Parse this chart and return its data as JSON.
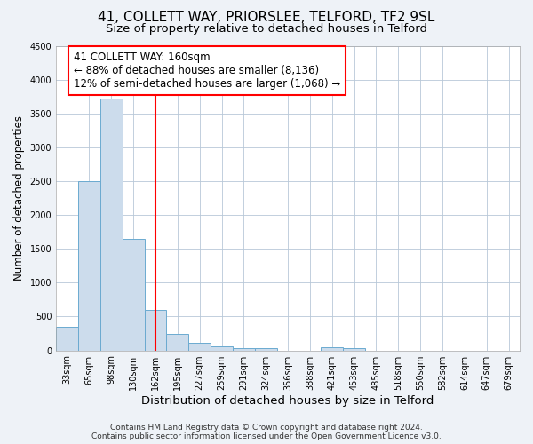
{
  "title": "41, COLLETT WAY, PRIORSLEE, TELFORD, TF2 9SL",
  "subtitle": "Size of property relative to detached houses in Telford",
  "xlabel": "Distribution of detached houses by size in Telford",
  "ylabel": "Number of detached properties",
  "categories": [
    "33sqm",
    "65sqm",
    "98sqm",
    "130sqm",
    "162sqm",
    "195sqm",
    "227sqm",
    "259sqm",
    "291sqm",
    "324sqm",
    "356sqm",
    "388sqm",
    "421sqm",
    "453sqm",
    "485sqm",
    "518sqm",
    "550sqm",
    "582sqm",
    "614sqm",
    "647sqm",
    "679sqm"
  ],
  "values": [
    350,
    2500,
    3720,
    1650,
    600,
    240,
    110,
    60,
    40,
    40,
    0,
    0,
    50,
    30,
    0,
    0,
    0,
    0,
    0,
    0,
    0
  ],
  "bar_color": "#ccdcec",
  "bar_edge_color": "#6baad0",
  "vline_x_index": 4,
  "vline_color": "red",
  "annotation_line1": "41 COLLETT WAY: 160sqm",
  "annotation_line2": "← 88% of detached houses are smaller (8,136)",
  "annotation_line3": "12% of semi-detached houses are larger (1,068) →",
  "annotation_box_color": "white",
  "annotation_box_edge_color": "red",
  "ylim": [
    0,
    4500
  ],
  "footnote": "Contains HM Land Registry data © Crown copyright and database right 2024.\nContains public sector information licensed under the Open Government Licence v3.0.",
  "title_fontsize": 11,
  "subtitle_fontsize": 9.5,
  "xlabel_fontsize": 9.5,
  "ylabel_fontsize": 8.5,
  "tick_fontsize": 7,
  "annotation_fontsize": 8.5,
  "footnote_fontsize": 6.5,
  "background_color": "#eef2f7",
  "plot_background_color": "white",
  "grid_color": "#b8c8d8"
}
